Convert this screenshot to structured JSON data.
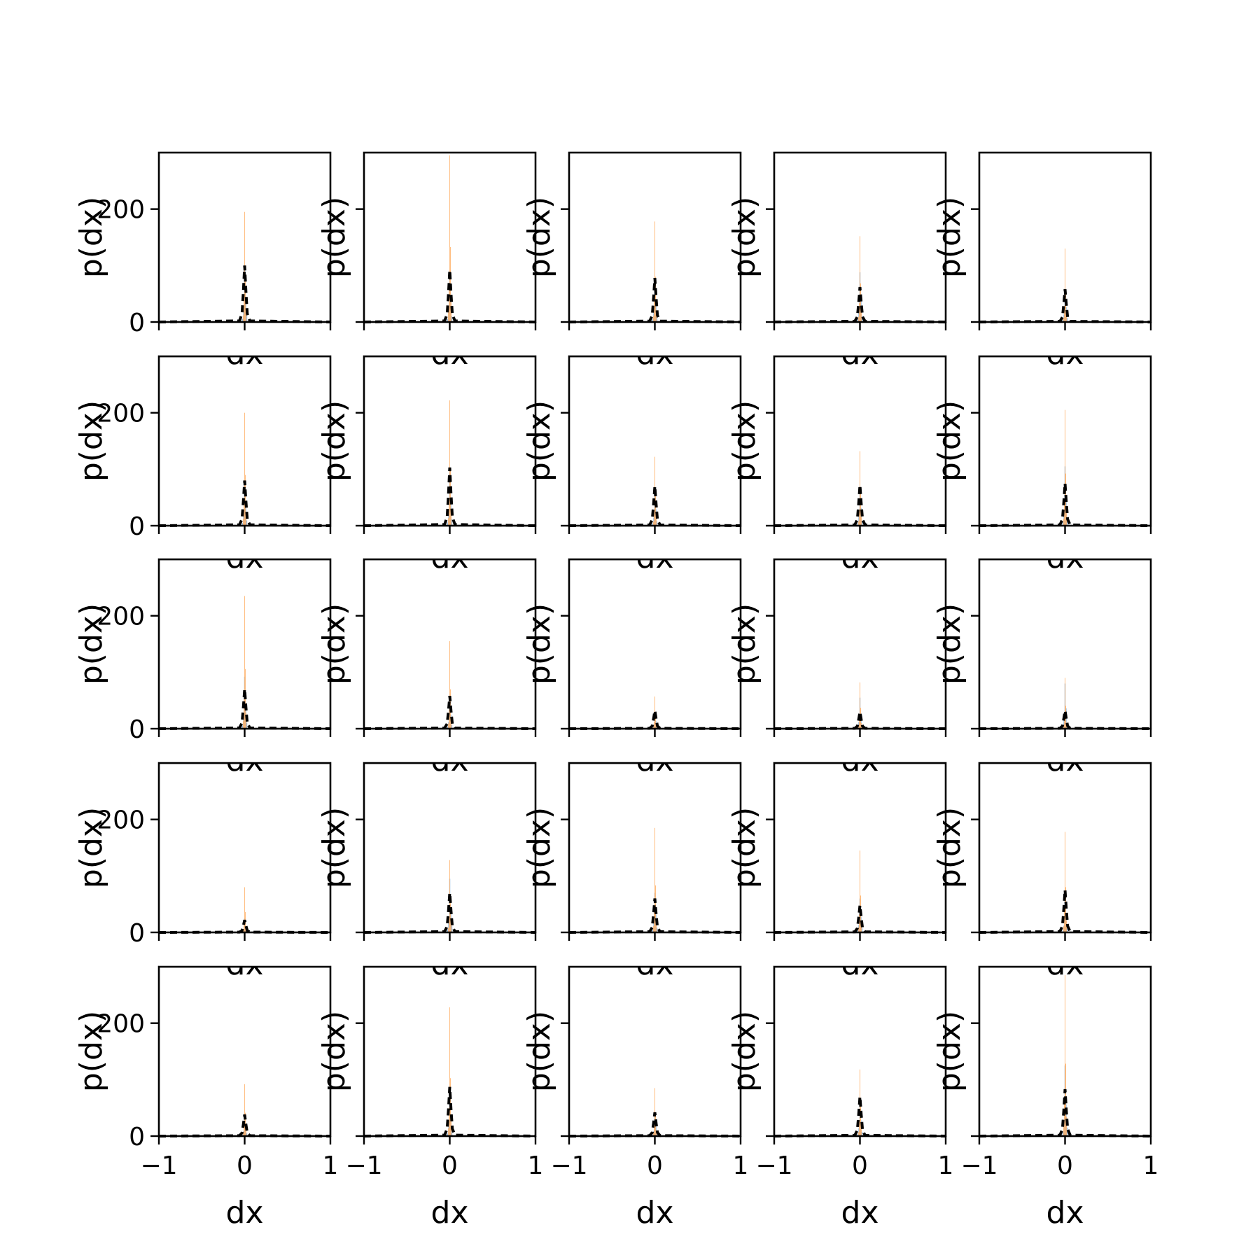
{
  "chart_data": {
    "type": "grid-of-histograms",
    "rows": 5,
    "cols": 5,
    "xlim": [
      -1,
      1
    ],
    "ylim": [
      0,
      300
    ],
    "x_ticks": [
      -1,
      0,
      1
    ],
    "x_tick_labels": [
      "−1",
      "0",
      "1"
    ],
    "y_ticks": [
      0,
      200
    ],
    "y_tick_labels": [
      "0",
      "200"
    ],
    "xlabel": "dx",
    "ylabel": "p(dx)",
    "colors": {
      "series_blue": "#6c9fd1",
      "series_orange": "#ffb36b",
      "dashed": "#000000"
    },
    "panels": [
      {
        "orange_peak": 195,
        "blue_peak": 95,
        "black_peak": 100
      },
      {
        "orange_peak": 295,
        "blue_peak": 85,
        "black_peak": 92
      },
      {
        "orange_peak": 178,
        "blue_peak": 75,
        "black_peak": 78
      },
      {
        "orange_peak": 152,
        "blue_peak": 88,
        "black_peak": 62
      },
      {
        "orange_peak": 130,
        "blue_peak": 60,
        "black_peak": 58
      },
      {
        "orange_peak": 200,
        "blue_peak": 78,
        "black_peak": 80
      },
      {
        "orange_peak": 222,
        "blue_peak": 95,
        "black_peak": 103
      },
      {
        "orange_peak": 122,
        "blue_peak": 65,
        "black_peak": 70
      },
      {
        "orange_peak": 132,
        "blue_peak": 70,
        "black_peak": 72
      },
      {
        "orange_peak": 205,
        "blue_peak": 105,
        "black_peak": 75
      },
      {
        "orange_peak": 235,
        "blue_peak": 92,
        "black_peak": 70
      },
      {
        "orange_peak": 155,
        "blue_peak": 55,
        "black_peak": 58
      },
      {
        "orange_peak": 57,
        "blue_peak": 30,
        "black_peak": 32
      },
      {
        "orange_peak": 82,
        "blue_peak": 55,
        "black_peak": 30
      },
      {
        "orange_peak": 90,
        "blue_peak": 80,
        "black_peak": 32
      },
      {
        "orange_peak": 80,
        "blue_peak": 25,
        "black_peak": 22
      },
      {
        "orange_peak": 128,
        "blue_peak": 95,
        "black_peak": 70
      },
      {
        "orange_peak": 185,
        "blue_peak": 70,
        "black_peak": 60
      },
      {
        "orange_peak": 145,
        "blue_peak": 60,
        "black_peak": 48
      },
      {
        "orange_peak": 178,
        "blue_peak": 55,
        "black_peak": 75
      },
      {
        "orange_peak": 92,
        "blue_peak": 40,
        "black_peak": 38
      },
      {
        "orange_peak": 228,
        "blue_peak": 75,
        "black_peak": 87
      },
      {
        "orange_peak": 85,
        "blue_peak": 40,
        "black_peak": 42
      },
      {
        "orange_peak": 118,
        "blue_peak": 62,
        "black_peak": 70
      },
      {
        "orange_peak": 285,
        "blue_peak": 125,
        "black_peak": 83
      }
    ]
  }
}
